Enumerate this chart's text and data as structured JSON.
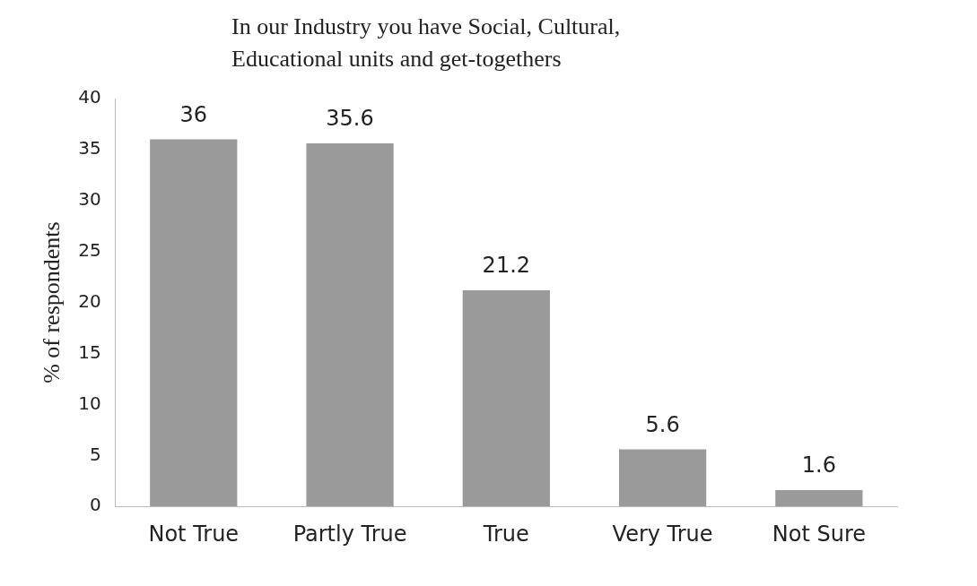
{
  "chart_data": {
    "type": "bar",
    "title": "In our Industry you have Social, Cultural, Educational units and get-togethers",
    "ylabel": "% of respondents",
    "categories": [
      "Not True",
      "Partly True",
      "True",
      "Very True",
      "Not Sure"
    ],
    "values": [
      36,
      35.6,
      21.2,
      5.6,
      1.6
    ],
    "color": "#9a9a9a",
    "ylim": [
      0,
      40
    ],
    "yticks": [
      0,
      5,
      10,
      15,
      20,
      25,
      30,
      35,
      40
    ],
    "grid": false,
    "legend": false,
    "data_labels": true
  }
}
